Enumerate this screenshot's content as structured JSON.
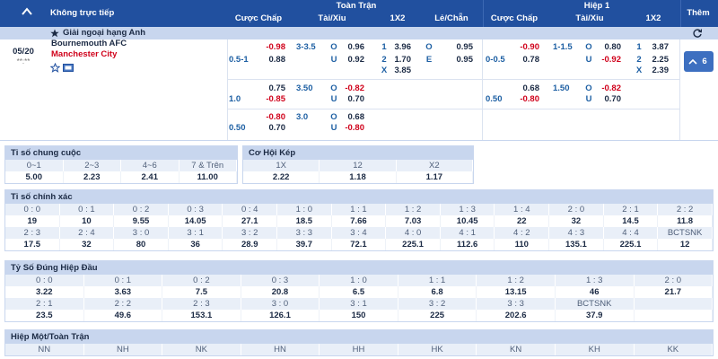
{
  "header": {
    "live_label": "Không trực tiếp",
    "full_time": "Toàn Trận",
    "first_half": "Hiệp 1",
    "more": "Thêm",
    "columns": [
      "Cược Chấp",
      "Tài/Xỉu",
      "1X2",
      "Lẻ/Chẵn",
      "Cược Chấp",
      "Tài/Xỉu",
      "1X2"
    ]
  },
  "league": "Giải ngoại hạng Anh",
  "match": {
    "date": "05/20",
    "time": "**:**",
    "home": "Bournemouth AFC",
    "away": "Manchester City",
    "more_count": "6",
    "lines": [
      {
        "ft_hdp": {
          "line": "0.5-1",
          "odds": [
            "-0.98",
            "0.88"
          ]
        },
        "ft_ou": {
          "line": "3-3.5",
          "odds": [
            [
              "O",
              "0.96"
            ],
            [
              "U",
              "0.92"
            ]
          ]
        },
        "ft_1x2": [
          [
            "1",
            "3.96"
          ],
          [
            "2",
            "1.70"
          ],
          [
            "X",
            "3.85"
          ]
        ],
        "oe": [
          [
            "O",
            "0.95"
          ],
          [
            "E",
            "0.95"
          ]
        ],
        "h1_hdp": {
          "line": "0-0.5",
          "odds": [
            "-0.90",
            "0.78"
          ]
        },
        "h1_ou": {
          "line": "1-1.5",
          "odds": [
            [
              "O",
              "0.80"
            ],
            [
              "U",
              "-0.92"
            ]
          ]
        },
        "h1_1x2": [
          [
            "1",
            "3.87"
          ],
          [
            "2",
            "2.25"
          ],
          [
            "X",
            "2.39"
          ]
        ]
      },
      {
        "ft_hdp": {
          "line": "1.0",
          "odds": [
            "0.75",
            "-0.85"
          ]
        },
        "ft_ou": {
          "line": "3.50",
          "odds": [
            [
              "O",
              "-0.82"
            ],
            [
              "U",
              "0.70"
            ]
          ]
        },
        "h1_hdp": {
          "line": "0.50",
          "odds": [
            "0.68",
            "-0.80"
          ]
        },
        "h1_ou": {
          "line": "1.50",
          "odds": [
            [
              "O",
              "-0.82"
            ],
            [
              "U",
              "0.70"
            ]
          ]
        }
      },
      {
        "ft_hdp": {
          "line": "0.50",
          "odds": [
            "-0.80",
            "0.70"
          ]
        },
        "ft_ou": {
          "line": "3.0",
          "odds": [
            [
              "O",
              "0.68"
            ],
            [
              "U",
              "-0.80"
            ]
          ]
        }
      }
    ]
  },
  "sections": [
    {
      "title": "Tỉ số chung cuộc",
      "rows": [
        {
          "labels": [
            "0~1",
            "2~3",
            "4~6",
            "7 & Trên"
          ],
          "values": [
            "5.00",
            "2.23",
            "2.41",
            "11.00"
          ]
        }
      ]
    },
    {
      "title": "Cơ Hội Kép",
      "rows": [
        {
          "labels": [
            "1X",
            "12",
            "X2"
          ],
          "values": [
            "2.22",
            "1.18",
            "1.17"
          ]
        }
      ]
    },
    {
      "title": "Tỉ số chính xác",
      "rows": [
        {
          "labels": [
            "0 : 0",
            "0 : 1",
            "0 : 2",
            "0 : 3",
            "0 : 4",
            "1 : 0",
            "1 : 1",
            "1 : 2",
            "1 : 3",
            "1 : 4",
            "2 : 0",
            "2 : 1",
            "2 : 2"
          ],
          "values": [
            "19",
            "10",
            "9.55",
            "14.05",
            "27.1",
            "18.5",
            "7.66",
            "7.03",
            "10.45",
            "22",
            "32",
            "14.5",
            "11.8"
          ]
        },
        {
          "labels": [
            "2 : 3",
            "2 : 4",
            "3 : 0",
            "3 : 1",
            "3 : 2",
            "3 : 3",
            "3 : 4",
            "4 : 0",
            "4 : 1",
            "4 : 2",
            "4 : 3",
            "4 : 4",
            "BCTSNK"
          ],
          "values": [
            "17.5",
            "32",
            "80",
            "36",
            "28.9",
            "39.7",
            "72.1",
            "225.1",
            "112.6",
            "110",
            "135.1",
            "225.1",
            "12"
          ]
        }
      ]
    },
    {
      "title": "Tỷ Số Đúng Hiệp Đầu",
      "rows": [
        {
          "labels": [
            "0 : 0",
            "0 : 1",
            "0 : 2",
            "0 : 3",
            "1 : 0",
            "1 : 1",
            "1 : 2",
            "1 : 3",
            "2 : 0"
          ],
          "values": [
            "3.22",
            "3.63",
            "7.5",
            "20.8",
            "6.5",
            "6.8",
            "13.15",
            "46",
            "21.7"
          ]
        },
        {
          "labels": [
            "2 : 1",
            "2 : 2",
            "2 : 3",
            "3 : 0",
            "3 : 1",
            "3 : 2",
            "3 : 3",
            "BCTSNK"
          ],
          "values": [
            "23.5",
            "49.6",
            "153.1",
            "126.1",
            "150",
            "225",
            "202.6",
            "37.9"
          ]
        }
      ]
    },
    {
      "title": "Hiệp Một/Toàn Trận",
      "rows": [
        {
          "labels": [
            "NN",
            "NH",
            "NK",
            "HN",
            "HH",
            "HK",
            "KN",
            "KH",
            "KK"
          ]
        }
      ]
    }
  ]
}
